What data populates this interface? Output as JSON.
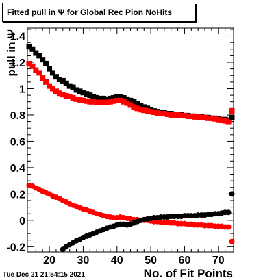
{
  "title": "Fitted pull in  Ψ  for Global Rec Pion NoHits",
  "timestamp": "Tue Dec 21 21:54:15 2021",
  "chart_data": {
    "type": "scatter",
    "title": "Fitted pull in  Ψ  for Global Rec Pion NoHits",
    "xlabel": "No. of Fit Points",
    "ylabel": "pull in  Ψ",
    "xlim": [
      13.5,
      74.5
    ],
    "ylim": [
      -0.24,
      1.46
    ],
    "xticks": [
      20,
      30,
      40,
      50,
      60,
      70
    ],
    "yticks": [
      -0.2,
      0,
      0.2,
      0.4,
      0.6,
      0.8,
      1,
      1.2,
      1.4
    ],
    "ytick_labels": [
      "-0.2",
      "0",
      "0.2",
      "0.4",
      "0.6",
      "0.8",
      "1",
      "1.2",
      "1.4"
    ],
    "grid": false,
    "series": [
      {
        "color": "#000000",
        "marker": "square",
        "x": [
          14,
          15,
          16,
          17,
          18,
          19,
          20,
          21,
          22,
          23,
          24,
          25,
          26,
          27,
          28,
          29,
          30,
          31,
          32,
          33,
          34,
          35,
          36,
          37,
          38,
          39,
          40,
          41,
          42,
          43,
          44,
          45,
          46,
          47,
          48,
          49,
          50,
          51,
          52,
          53,
          54,
          55,
          56,
          57,
          58,
          59,
          60,
          61,
          62,
          63,
          64,
          65,
          66,
          67,
          68,
          69,
          70,
          71,
          72,
          73
        ],
        "y": [
          1.32,
          1.3,
          1.27,
          1.25,
          1.22,
          1.19,
          1.15,
          1.12,
          1.09,
          1.07,
          1.06,
          1.04,
          1.02,
          1.01,
          0.99,
          0.98,
          0.97,
          0.96,
          0.95,
          0.94,
          0.93,
          0.925,
          0.925,
          0.92,
          0.925,
          0.93,
          0.935,
          0.935,
          0.93,
          0.92,
          0.91,
          0.9,
          0.885,
          0.87,
          0.86,
          0.85,
          0.84,
          0.83,
          0.825,
          0.82,
          0.815,
          0.81,
          0.81,
          0.805,
          0.8,
          0.8,
          0.795,
          0.795,
          0.79,
          0.79,
          0.785,
          0.785,
          0.78,
          0.78,
          0.775,
          0.775,
          0.77,
          0.765,
          0.765,
          0.76
        ]
      },
      {
        "color": "#ff0000",
        "marker": "square",
        "x": [
          14,
          15,
          16,
          17,
          18,
          19,
          20,
          21,
          22,
          23,
          24,
          25,
          26,
          27,
          28,
          29,
          30,
          31,
          32,
          33,
          34,
          35,
          36,
          37,
          38,
          39,
          40,
          41,
          42,
          43,
          44,
          45,
          46,
          47,
          48,
          49,
          50,
          51,
          52,
          53,
          54,
          55,
          56,
          57,
          58,
          59,
          60,
          61,
          62,
          63,
          64,
          65,
          66,
          67,
          68,
          69,
          70,
          71,
          72,
          73
        ],
        "y": [
          1.19,
          1.17,
          1.14,
          1.12,
          1.08,
          1.05,
          1.02,
          1.0,
          0.98,
          0.965,
          0.955,
          0.945,
          0.94,
          0.93,
          0.92,
          0.915,
          0.91,
          0.905,
          0.9,
          0.9,
          0.895,
          0.895,
          0.895,
          0.895,
          0.9,
          0.905,
          0.91,
          0.91,
          0.9,
          0.89,
          0.875,
          0.86,
          0.85,
          0.84,
          0.835,
          0.83,
          0.825,
          0.82,
          0.815,
          0.81,
          0.81,
          0.805,
          0.8,
          0.8,
          0.8,
          0.795,
          0.795,
          0.79,
          0.79,
          0.785,
          0.785,
          0.78,
          0.78,
          0.775,
          0.775,
          0.77,
          0.765,
          0.76,
          0.755,
          0.75
        ]
      },
      {
        "color": "#ff0000",
        "marker": "circle",
        "x": [
          14,
          15,
          16,
          17,
          18,
          19,
          20,
          21,
          22,
          23,
          24,
          25,
          26,
          27,
          28,
          29,
          30,
          31,
          32,
          33,
          34,
          35,
          36,
          37,
          38,
          39,
          40,
          41,
          42,
          43,
          44,
          45,
          46,
          47,
          48,
          49,
          50,
          51,
          52,
          53,
          54,
          55,
          56,
          57,
          58,
          59,
          60,
          61,
          62,
          63,
          64,
          65,
          66,
          67,
          68,
          69,
          70,
          71,
          72,
          73
        ],
        "y": [
          0.265,
          0.26,
          0.245,
          0.235,
          0.22,
          0.21,
          0.2,
          0.185,
          0.175,
          0.165,
          0.15,
          0.14,
          0.125,
          0.115,
          0.105,
          0.095,
          0.085,
          0.08,
          0.07,
          0.06,
          0.05,
          0.045,
          0.035,
          0.03,
          0.025,
          0.02,
          0.02,
          0.025,
          0.02,
          0.015,
          0.01,
          0.005,
          0.005,
          0.0,
          0.0,
          0.0,
          -0.005,
          -0.01,
          -0.01,
          -0.015,
          -0.015,
          -0.015,
          -0.02,
          -0.02,
          -0.025,
          -0.025,
          -0.025,
          -0.03,
          -0.03,
          -0.035,
          -0.035,
          -0.035,
          -0.04,
          -0.04,
          -0.04,
          -0.045,
          -0.045,
          -0.045,
          -0.05,
          -0.05
        ]
      },
      {
        "color": "#000000",
        "marker": "circle",
        "x": [
          24,
          25,
          26,
          27,
          28,
          29,
          30,
          31,
          32,
          33,
          34,
          35,
          36,
          37,
          38,
          39,
          40,
          41,
          42,
          43,
          44,
          45,
          46,
          47,
          48,
          49,
          50,
          51,
          52,
          53,
          54,
          55,
          56,
          57,
          58,
          59,
          60,
          61,
          62,
          63,
          64,
          65,
          66,
          67,
          68,
          69,
          70,
          71,
          72,
          73
        ],
        "y": [
          -0.22,
          -0.2,
          -0.185,
          -0.17,
          -0.155,
          -0.145,
          -0.13,
          -0.12,
          -0.11,
          -0.1,
          -0.09,
          -0.08,
          -0.07,
          -0.06,
          -0.05,
          -0.045,
          -0.035,
          -0.03,
          -0.03,
          -0.035,
          -0.03,
          -0.02,
          -0.01,
          0.0,
          0.005,
          0.01,
          0.015,
          0.02,
          0.02,
          0.025,
          0.025,
          0.025,
          0.03,
          0.03,
          0.03,
          0.03,
          0.035,
          0.035,
          0.035,
          0.035,
          0.04,
          0.04,
          0.04,
          0.045,
          0.045,
          0.05,
          0.05,
          0.055,
          0.06,
          0.06
        ]
      }
    ],
    "overflow_points": [
      {
        "color": "#ff0000",
        "marker": "square",
        "x": 74,
        "y": 0.83
      },
      {
        "color": "#000000",
        "marker": "square",
        "x": 74,
        "y": 0.78
      },
      {
        "color": "#000000",
        "marker": "circle",
        "x": 74,
        "y": 0.2
      },
      {
        "color": "#ff0000",
        "marker": "circle",
        "x": 74,
        "y": -0.16
      }
    ]
  }
}
